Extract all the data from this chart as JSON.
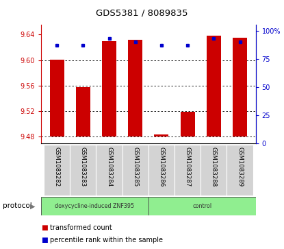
{
  "title": "GDS5381 / 8089835",
  "samples": [
    "GSM1083282",
    "GSM1083283",
    "GSM1083284",
    "GSM1083285",
    "GSM1083286",
    "GSM1083287",
    "GSM1083288",
    "GSM1083289"
  ],
  "red_values": [
    9.601,
    9.558,
    9.63,
    9.632,
    9.484,
    9.519,
    9.638,
    9.635
  ],
  "blue_values": [
    87,
    87,
    93,
    90,
    87,
    87,
    93,
    90
  ],
  "ylim_left": [
    9.47,
    9.655
  ],
  "ylim_right": [
    0,
    105
  ],
  "yticks_left": [
    9.48,
    9.52,
    9.56,
    9.6,
    9.64
  ],
  "yticks_right": [
    0,
    25,
    50,
    75,
    100
  ],
  "ytick_labels_right": [
    "0",
    "25",
    "50",
    "75",
    "100%"
  ],
  "bar_width": 0.55,
  "base_value": 9.48,
  "protocol_group1_label": "doxycycline-induced ZNF395",
  "protocol_group2_label": "control",
  "protocol_color": "#90ee90",
  "red_color": "#cc0000",
  "blue_color": "#0000cc",
  "bg_color": "#ffffff",
  "tick_area_bg": "#d3d3d3",
  "legend_red": "transformed count",
  "legend_blue": "percentile rank within the sample"
}
